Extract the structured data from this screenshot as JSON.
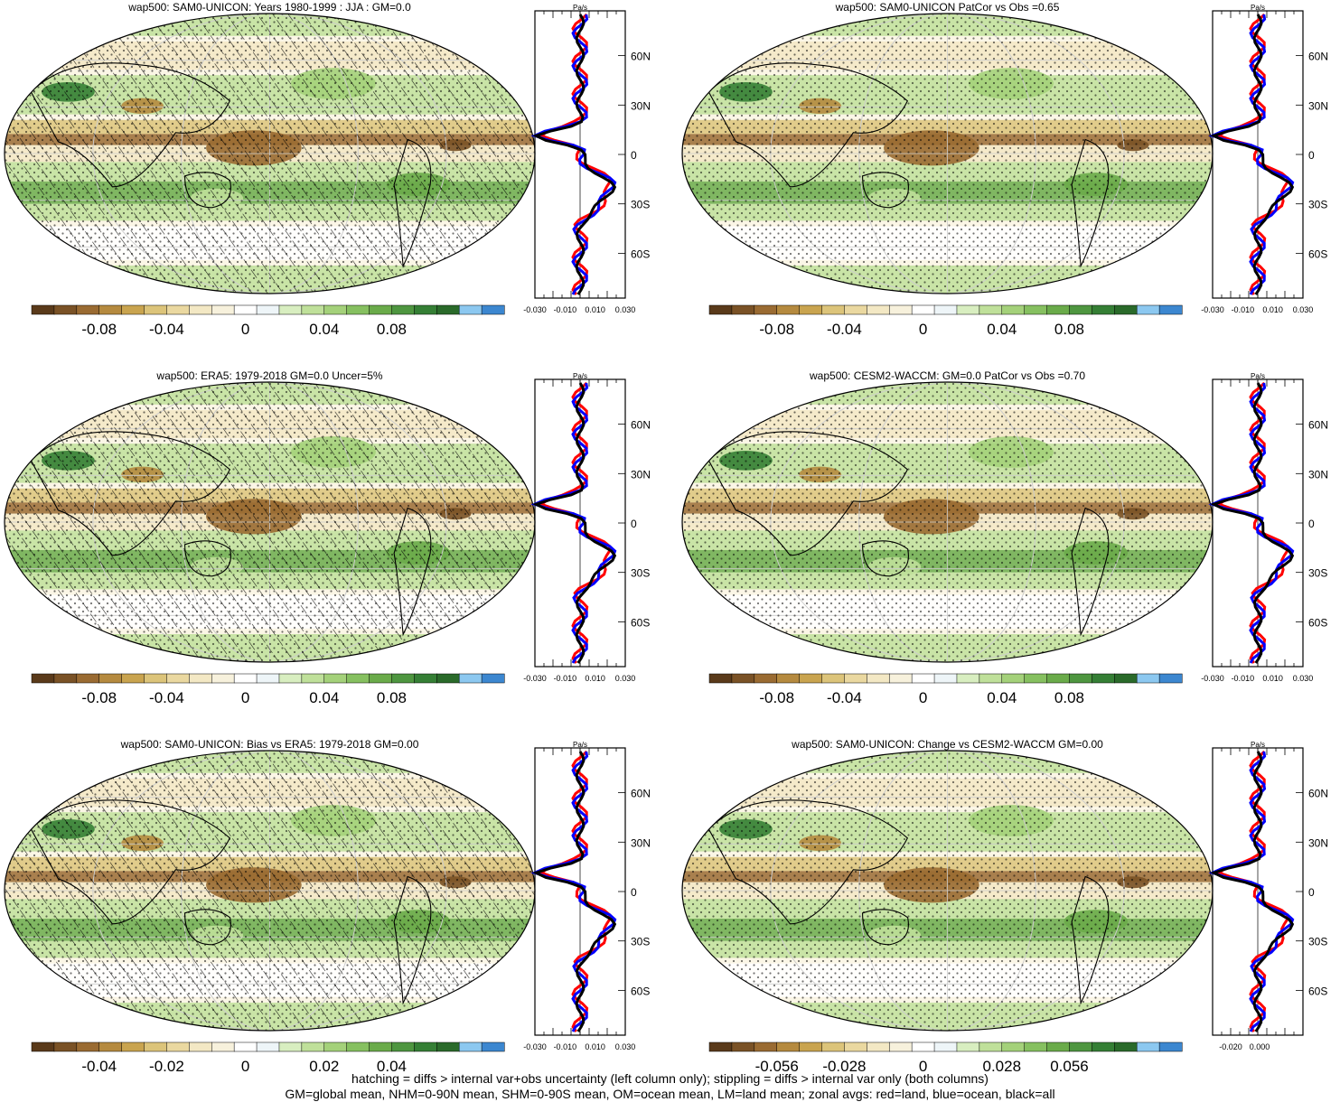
{
  "colors": {
    "palette": [
      "#5a3a1a",
      "#7a5226",
      "#9a6b32",
      "#b58a3f",
      "#c9a44f",
      "#dcc47a",
      "#ead8a0",
      "#f3e8c4",
      "#f7f1dc",
      "#ffffff",
      "#eef5f8",
      "#d8eec0",
      "#bfe09a",
      "#a4d17a",
      "#86c060",
      "#6aab4a",
      "#4e9640",
      "#357f35",
      "#2a6a2a",
      "#8cc8f0",
      "#3c87d0"
    ],
    "land_line": "#ff0000",
    "ocean_line": "#0000ff",
    "all_line": "#000000"
  },
  "panels": [
    {
      "title": "wap500: SAM0-UNICON: Years 1980-1999 : JJA : GM=0.0",
      "hatching": true,
      "colorbar_labels": [
        "-0.08",
        "-0.04",
        "0",
        "0.04",
        "0.08"
      ],
      "zonal": {
        "unit": "Pa/s",
        "lat_labels": [
          "60N",
          "30N",
          "0",
          "30S",
          "60S"
        ],
        "x_labels": [
          "-0.030",
          "-0.010",
          "0.010",
          "0.030"
        ]
      }
    },
    {
      "title": "wap500: SAM0-UNICON PatCor vs Obs =0.65",
      "hatching": false,
      "colorbar_labels": [
        "-0.08",
        "-0.04",
        "0",
        "0.04",
        "0.08"
      ],
      "zonal": {
        "unit": "Pa/s",
        "lat_labels": [
          "60N",
          "30N",
          "0",
          "30S",
          "60S"
        ],
        "x_labels": [
          "-0.030",
          "-0.010",
          "0.010",
          "0.030"
        ]
      }
    },
    {
      "title": "wap500: ERA5: 1979-2018 GM=0.0 Uncer=5%",
      "hatching": true,
      "colorbar_labels": [
        "-0.08",
        "-0.04",
        "0",
        "0.04",
        "0.08"
      ],
      "zonal": {
        "unit": "Pa/s",
        "lat_labels": [
          "60N",
          "30N",
          "0",
          "30S",
          "60S"
        ],
        "x_labels": [
          "-0.030",
          "-0.010",
          "0.010",
          "0.030"
        ]
      }
    },
    {
      "title": "wap500: CESM2-WACCM: GM=0.0 PatCor vs Obs =0.70",
      "hatching": false,
      "colorbar_labels": [
        "-0.08",
        "-0.04",
        "0",
        "0.04",
        "0.08"
      ],
      "zonal": {
        "unit": "Pa/s",
        "lat_labels": [
          "60N",
          "30N",
          "0",
          "30S",
          "60S"
        ],
        "x_labels": [
          "-0.030",
          "-0.010",
          "0.010",
          "0.030"
        ]
      }
    },
    {
      "title": "wap500: SAM0-UNICON: Bias vs ERA5: 1979-2018 GM=0.00",
      "hatching": true,
      "colorbar_labels": [
        "-0.04",
        "-0.02",
        "0",
        "0.02",
        "0.04"
      ],
      "zonal": {
        "unit": "Pa/s",
        "lat_labels": [
          "60N",
          "30N",
          "0",
          "30S",
          "60S"
        ],
        "x_labels": [
          "-0.030",
          "-0.010",
          "0.010",
          "0.030"
        ]
      }
    },
    {
      "title": "wap500: SAM0-UNICON: Change vs CESM2-WACCM GM=0.00",
      "hatching": false,
      "colorbar_labels": [
        "-0.056",
        "-0.028",
        "0",
        "0.028",
        "0.056"
      ],
      "zonal": {
        "unit": "Pa/s",
        "lat_labels": [
          "60N",
          "30N",
          "0",
          "30S",
          "60S"
        ],
        "x_labels": [
          "-0.020",
          "0.000"
        ]
      }
    }
  ],
  "chart_data": [
    {
      "type": "heatmap",
      "title": "wap500: SAM0-UNICON: Years 1980-1999 : JJA : GM=0.0",
      "colorbar_ticks": [
        -0.08,
        -0.04,
        0,
        0.04,
        0.08
      ]
    },
    {
      "type": "heatmap",
      "title": "wap500: SAM0-UNICON PatCor vs Obs =0.65",
      "colorbar_ticks": [
        -0.08,
        -0.04,
        0,
        0.04,
        0.08
      ]
    },
    {
      "type": "heatmap",
      "title": "wap500: ERA5: 1979-2018 GM=0.0 Uncer=5%",
      "colorbar_ticks": [
        -0.08,
        -0.04,
        0,
        0.04,
        0.08
      ]
    },
    {
      "type": "heatmap",
      "title": "wap500: CESM2-WACCM: GM=0.0 PatCor vs Obs =0.70",
      "colorbar_ticks": [
        -0.08,
        -0.04,
        0,
        0.04,
        0.08
      ]
    },
    {
      "type": "heatmap",
      "title": "wap500: SAM0-UNICON: Bias vs ERA5: 1979-2018 GM=0.00",
      "colorbar_ticks": [
        -0.04,
        -0.02,
        0,
        0.02,
        0.04
      ]
    },
    {
      "type": "heatmap",
      "title": "wap500: SAM0-UNICON: Change vs CESM2-WACCM GM=0.00",
      "colorbar_ticks": [
        -0.056,
        -0.028,
        0,
        0.028,
        0.056
      ]
    }
  ],
  "caption": {
    "line1": "hatching = diffs > internal var+obs uncertainty (left column only); stippling = diffs > internal var only (both columns)",
    "line2": "GM=global mean, NHM=0-90N mean, SHM=0-90S mean, OM=ocean mean, LM=land mean; zonal avgs: red=land, blue=ocean, black=all"
  }
}
